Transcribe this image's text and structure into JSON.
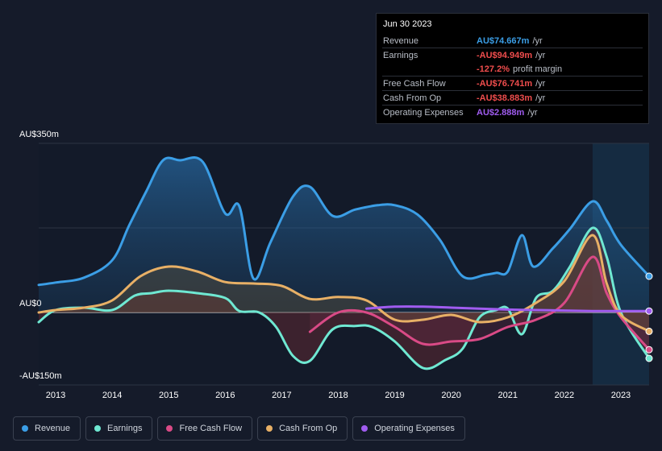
{
  "tooltip": {
    "date": "Jun 30 2023",
    "rows": [
      {
        "label": "Revenue",
        "value": "AU$74.667m",
        "unit": "/yr",
        "color": "#3b9ee6"
      },
      {
        "label": "Earnings",
        "value": "-AU$94.949m",
        "unit": "/yr",
        "color": "#f04d4d"
      },
      {
        "label": "",
        "value": "-127.2%",
        "unit": "profit margin",
        "color": "#f04d4d"
      },
      {
        "label": "Free Cash Flow",
        "value": "-AU$76.741m",
        "unit": "/yr",
        "color": "#f04d4d"
      },
      {
        "label": "Cash From Op",
        "value": "-AU$38.883m",
        "unit": "/yr",
        "color": "#f04d4d"
      },
      {
        "label": "Operating Expenses",
        "value": "AU$2.888m",
        "unit": "/yr",
        "color": "#a05cf0"
      }
    ]
  },
  "legend": [
    {
      "label": "Revenue",
      "color": "#3b9ee6"
    },
    {
      "label": "Earnings",
      "color": "#6fe8d2"
    },
    {
      "label": "Free Cash Flow",
      "color": "#d94a86"
    },
    {
      "label": "Cash From Op",
      "color": "#e8b066"
    },
    {
      "label": "Operating Expenses",
      "color": "#a05cf0"
    }
  ],
  "chart_data": {
    "type": "area",
    "y_unit": "AU$m",
    "ylim": [
      -150,
      350
    ],
    "y_tick_labels": [
      {
        "value": 350,
        "label": "AU$350m"
      },
      {
        "value": 0,
        "label": "AU$0"
      },
      {
        "value": -150,
        "label": "-AU$150m"
      }
    ],
    "xlim": [
      2012.7,
      2023.5
    ],
    "x_ticks": [
      2013,
      2014,
      2015,
      2016,
      2017,
      2018,
      2019,
      2020,
      2021,
      2022,
      2023
    ],
    "highlight_start": 2022.5,
    "grid": true,
    "legend_position": "bottom",
    "series": [
      {
        "name": "Revenue",
        "color": "#3b9ee6",
        "x": [
          2012.7,
          2013.0,
          2013.5,
          2014.0,
          2014.3,
          2014.6,
          2014.9,
          2015.2,
          2015.6,
          2016.0,
          2016.25,
          2016.5,
          2016.8,
          2017.2,
          2017.5,
          2017.9,
          2018.3,
          2018.7,
          2019.0,
          2019.4,
          2019.8,
          2020.2,
          2020.6,
          2020.8,
          2021.0,
          2021.25,
          2021.45,
          2021.8,
          2022.1,
          2022.5,
          2022.75,
          2023.0,
          2023.5
        ],
        "y": [
          57,
          62,
          72,
          108,
          180,
          250,
          315,
          315,
          312,
          205,
          220,
          70,
          145,
          240,
          260,
          200,
          213,
          222,
          222,
          203,
          150,
          75,
          78,
          82,
          85,
          160,
          95,
          133,
          173,
          230,
          190,
          140,
          75
        ]
      },
      {
        "name": "Earnings",
        "color": "#6fe8d2",
        "x": [
          2012.7,
          2013.0,
          2013.5,
          2014.0,
          2014.4,
          2014.7,
          2015.0,
          2015.5,
          2016.0,
          2016.25,
          2016.6,
          2016.9,
          2017.2,
          2017.5,
          2017.9,
          2018.3,
          2018.6,
          2019.0,
          2019.5,
          2019.9,
          2020.2,
          2020.5,
          2020.8,
          2021.0,
          2021.25,
          2021.5,
          2021.8,
          2022.1,
          2022.5,
          2022.75,
          2023.0,
          2023.5
        ],
        "y": [
          -20,
          5,
          10,
          5,
          35,
          40,
          45,
          40,
          30,
          3,
          0,
          -30,
          -90,
          -100,
          -35,
          -28,
          -30,
          -60,
          -115,
          -98,
          -75,
          -10,
          5,
          8,
          -45,
          30,
          45,
          95,
          175,
          115,
          0,
          -95
        ]
      },
      {
        "name": "Free Cash Flow",
        "color": "#d94a86",
        "x": [
          2017.5,
          2018.0,
          2018.5,
          2019.0,
          2019.5,
          2020.0,
          2020.5,
          2021.0,
          2021.5,
          2022.0,
          2022.5,
          2022.75,
          2023.0,
          2023.5
        ],
        "y": [
          -40,
          0,
          0,
          -30,
          -65,
          -60,
          -55,
          -30,
          -15,
          20,
          115,
          40,
          -10,
          -77
        ]
      },
      {
        "name": "Cash From Op",
        "color": "#e8b066",
        "x": [
          2012.7,
          2013.0,
          2013.5,
          2014.0,
          2014.5,
          2015.0,
          2015.5,
          2016.0,
          2016.5,
          2017.0,
          2017.5,
          2018.0,
          2018.5,
          2019.0,
          2019.5,
          2020.0,
          2020.5,
          2021.0,
          2021.5,
          2022.0,
          2022.5,
          2022.75,
          2023.0,
          2023.5
        ],
        "y": [
          0,
          5,
          10,
          25,
          75,
          95,
          85,
          63,
          60,
          55,
          28,
          32,
          25,
          -15,
          -15,
          -5,
          -20,
          -10,
          20,
          65,
          160,
          60,
          -5,
          -39
        ]
      },
      {
        "name": "Operating Expenses",
        "color": "#a05cf0",
        "x": [
          2018.5,
          2019.0,
          2019.5,
          2020.0,
          2020.5,
          2021.0,
          2021.5,
          2022.0,
          2022.5,
          2023.0,
          2023.5
        ],
        "y": [
          8,
          12,
          12,
          10,
          8,
          6,
          5,
          4,
          3,
          3,
          3
        ]
      }
    ]
  }
}
